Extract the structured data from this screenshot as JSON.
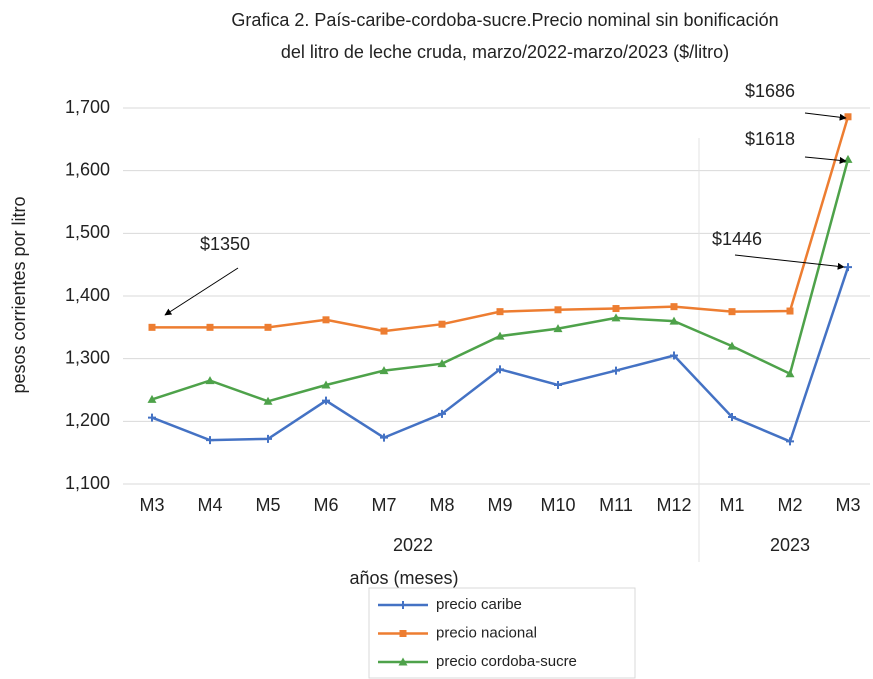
{
  "chart_data": {
    "type": "line",
    "title": [
      "Grafica 2. País-caribe-cordoba-sucre.Precio nominal sin bonificación",
      "del litro de leche cruda, marzo/2022-marzo/2023 ($/litro)"
    ],
    "ylabel": "pesos corrientes por litro",
    "xlabel": "años (meses)",
    "categories": [
      "M3",
      "M4",
      "M5",
      "M6",
      "M7",
      "M8",
      "M9",
      "M10",
      "M11",
      "M12",
      "M1",
      "M2",
      "M3"
    ],
    "x_groups": [
      {
        "label": "2022",
        "count": 10
      },
      {
        "label": "2023",
        "count": 3
      }
    ],
    "series": [
      {
        "name": "precio caribe",
        "color": "#4472c4",
        "marker": "plus",
        "values": [
          1206,
          1170,
          1172,
          1233,
          1174,
          1212,
          1283,
          1258,
          1281,
          1305,
          1207,
          1168,
          1446
        ]
      },
      {
        "name": "precio nacional",
        "color": "#ed7d31",
        "marker": "square",
        "values": [
          1350,
          1350,
          1350,
          1362,
          1344,
          1355,
          1375,
          1378,
          1380,
          1383,
          1375,
          1376,
          1686
        ]
      },
      {
        "name": "precio cordoba-sucre",
        "color": "#4ea24a",
        "marker": "triangle",
        "values": [
          1235,
          1265,
          1232,
          1258,
          1281,
          1292,
          1336,
          1348,
          1365,
          1360,
          1320,
          1276,
          1618
        ]
      }
    ],
    "annotations": [
      "$1350",
      "$1686",
      "$1618",
      "$1446"
    ],
    "ylim": [
      1100,
      1700
    ],
    "yticks": [
      {
        "value": 1100,
        "label": "1,100"
      },
      {
        "value": 1200,
        "label": "1,200"
      },
      {
        "value": 1300,
        "label": "1,300"
      },
      {
        "value": 1400,
        "label": "1,400"
      },
      {
        "value": 1500,
        "label": "1,500"
      },
      {
        "value": 1600,
        "label": "1,600"
      },
      {
        "value": 1700,
        "label": "1,700"
      }
    ],
    "grid": true
  }
}
